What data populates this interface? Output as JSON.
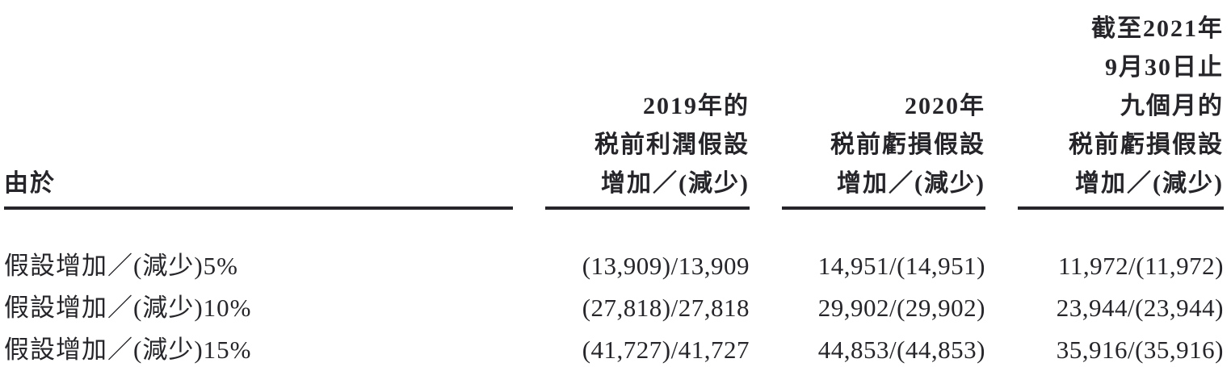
{
  "table": {
    "row_header": "由於",
    "column_headers": [
      {
        "lines": [
          "2019年的",
          "税前利潤假設",
          "增加／(減少)"
        ]
      },
      {
        "lines": [
          "2020年",
          "税前虧損假設",
          "增加／(減少)"
        ]
      },
      {
        "lines": [
          "截至2021年",
          "9月30日止",
          "九個月的",
          "税前虧損假設",
          "增加／(減少)"
        ]
      }
    ],
    "rows": [
      {
        "label": "假設增加／(減少)5%",
        "values": [
          "(13,909)/13,909",
          "14,951/(14,951)",
          "11,972/(11,972)"
        ]
      },
      {
        "label": "假設增加／(減少)10%",
        "values": [
          "(27,818)/27,818",
          "29,902/(29,902)",
          "23,944/(23,944)"
        ]
      },
      {
        "label": "假設增加／(減少)15%",
        "values": [
          "(41,727)/41,727",
          "44,853/(44,853)",
          "35,916/(35,916)"
        ]
      }
    ],
    "colors": {
      "text": "#26262a",
      "rule": "#26262a",
      "background": "#ffffff"
    }
  }
}
